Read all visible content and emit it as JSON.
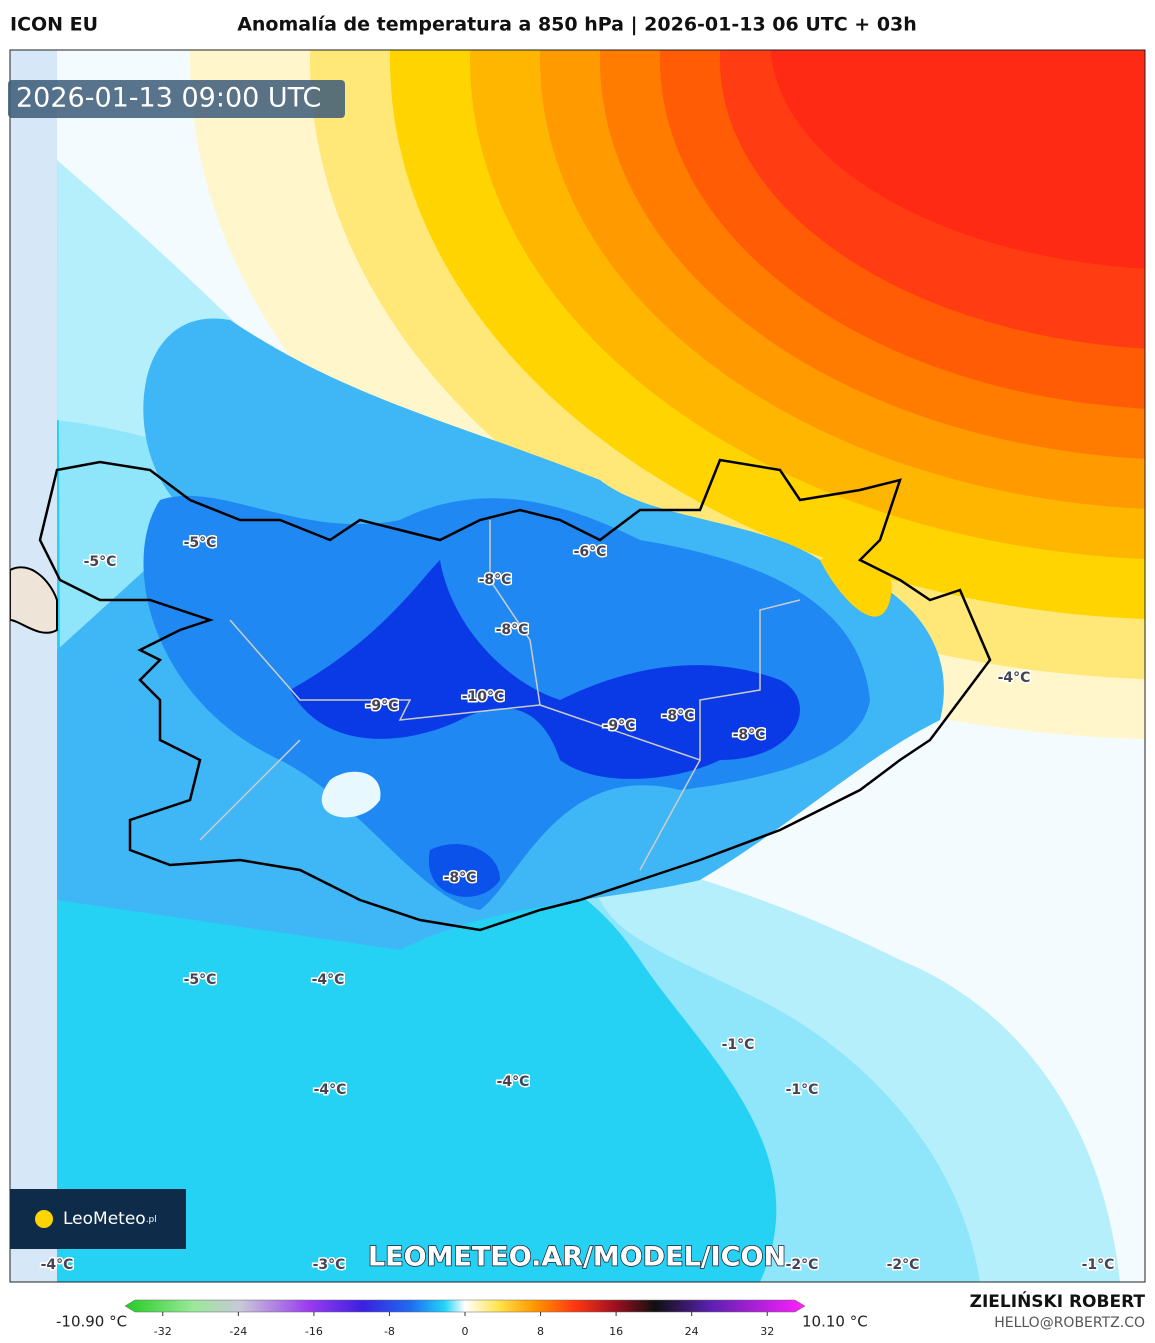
{
  "header": {
    "model": "ICON EU",
    "title": "Anomalía de temperatura a 850 hPa | 2026-01-13 06 UTC + 03h"
  },
  "timestamp": "2026-01-13 09:00 UTC",
  "logo": {
    "brand": "LeoMeteo",
    "suffix": ".pl"
  },
  "watermark": "LEOMETEO.AR/MODEL/ICON",
  "map_labels": [
    "-5°C",
    "-5°C",
    "-6°C",
    "-8°C",
    "-8°C",
    "-10°C",
    "-9°C",
    "-9°C",
    "-8°C",
    "-8°C",
    "-8°C",
    "-4°C",
    "-5°C",
    "-4°C",
    "-4°C",
    "-4°C",
    "-1°C",
    "-1°C",
    "-4°C",
    "-3°C",
    "-2°C",
    "-2°C",
    "-1°C"
  ],
  "colorbar": {
    "min_label": "-10.90 °C",
    "max_label": "10.10 °C",
    "range": [
      -36,
      36
    ],
    "ticks": [
      -32,
      -24,
      -16,
      -8,
      0,
      8,
      16,
      24,
      32
    ]
  },
  "credits": {
    "author": "ZIELIŃSKI ROBERT",
    "contact": "HELLO@ROBERTZ.CO"
  }
}
